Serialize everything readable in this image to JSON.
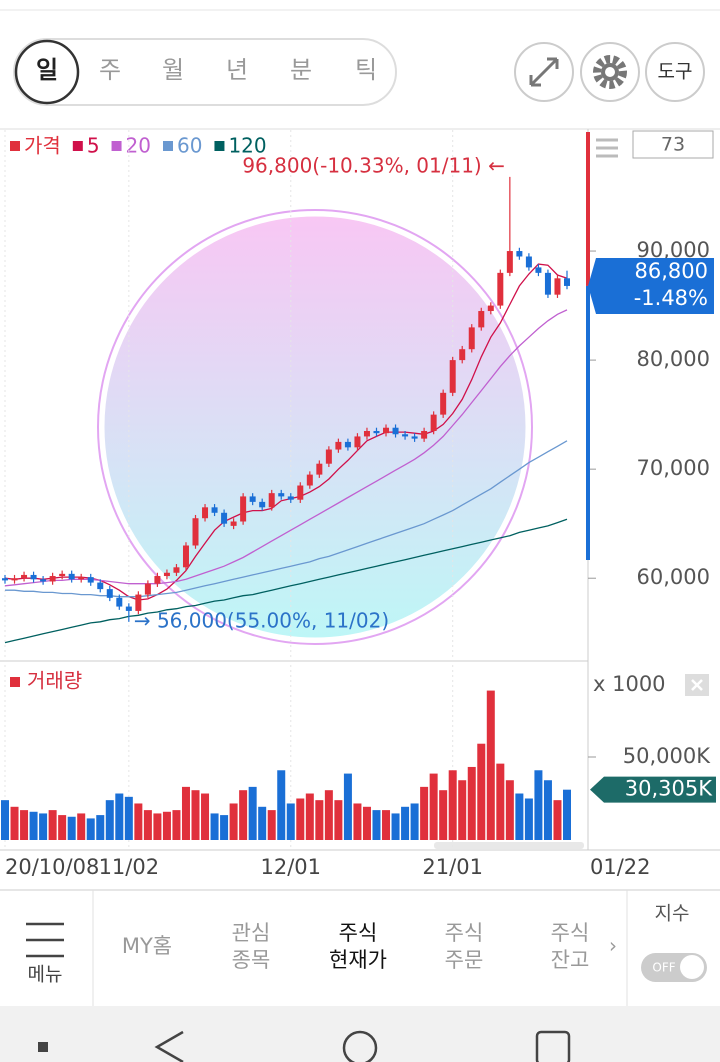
{
  "period_tabs": [
    "일",
    "주",
    "월",
    "년",
    "분",
    "틱"
  ],
  "tool_button": "도구",
  "chart_data": {
    "type": "candlestick",
    "legend": [
      {
        "name": "가격",
        "color": "#e0303c"
      },
      {
        "name": "5",
        "color": "#d0104a"
      },
      {
        "name": "20",
        "color": "#c060d0"
      },
      {
        "name": "60",
        "color": "#6a98d0"
      },
      {
        "name": "120",
        "color": "#006060"
      }
    ],
    "badge": "73",
    "up_color": "#e0303c",
    "down_color": "#1a6fd6",
    "categories": [
      "20/10/08",
      null,
      null,
      null,
      null,
      null,
      null,
      null,
      null,
      null,
      null,
      null,
      null,
      "11/02",
      null,
      null,
      null,
      null,
      null,
      null,
      null,
      null,
      null,
      null,
      null,
      null,
      null,
      null,
      null,
      null,
      "12/01",
      null,
      null,
      null,
      null,
      null,
      null,
      null,
      null,
      null,
      null,
      null,
      null,
      null,
      null,
      null,
      null,
      "21/01",
      null,
      null,
      null,
      null,
      null,
      null,
      null,
      null,
      null,
      null,
      null,
      "01/22"
    ],
    "open": [
      60000,
      59800,
      60000,
      60300,
      59900,
      59700,
      60200,
      60400,
      59900,
      60100,
      59600,
      59000,
      58200,
      57400,
      57000,
      58500,
      59500,
      60200,
      60500,
      61000,
      63000,
      65500,
      66500,
      66000,
      64800,
      65200,
      67500,
      67000,
      66500,
      67800,
      67500,
      67200,
      68500,
      69500,
      70500,
      71800,
      72500,
      72000,
      73000,
      73500,
      73300,
      73800,
      73200,
      73000,
      72800,
      73500,
      75000,
      77000,
      80000,
      81000,
      83000,
      84500,
      85000,
      88000,
      90000,
      89500,
      88500,
      88000,
      86000,
      87500
    ],
    "close": [
      59800,
      60000,
      60300,
      59900,
      59700,
      60200,
      60400,
      59900,
      60100,
      59600,
      59000,
      58200,
      57400,
      57000,
      58500,
      59500,
      60200,
      60500,
      61000,
      63000,
      65500,
      66500,
      66000,
      65000,
      65200,
      67500,
      67000,
      66500,
      67800,
      67500,
      67200,
      68500,
      69500,
      70500,
      71800,
      72500,
      72000,
      73000,
      73500,
      73300,
      73800,
      73200,
      73000,
      72800,
      73500,
      75000,
      77000,
      80000,
      81000,
      83000,
      84500,
      85000,
      88000,
      90000,
      89500,
      88500,
      88000,
      86000,
      87500,
      86800
    ],
    "high": [
      60300,
      60300,
      60600,
      60600,
      60200,
      60500,
      60700,
      60700,
      60400,
      60400,
      59900,
      59300,
      58500,
      57700,
      58800,
      59800,
      60500,
      60800,
      61300,
      63300,
      65800,
      66800,
      66800,
      66300,
      65500,
      67800,
      67800,
      67300,
      68100,
      68100,
      67800,
      68800,
      69800,
      70800,
      72100,
      72800,
      72800,
      73300,
      73800,
      73800,
      74100,
      74100,
      73500,
      73300,
      73800,
      75300,
      77300,
      80300,
      81300,
      83300,
      84800,
      85300,
      88300,
      96800,
      90300,
      89800,
      88800,
      88300,
      87800,
      88200
    ],
    "low": [
      59500,
      59500,
      59700,
      59600,
      59400,
      59400,
      59900,
      59600,
      59600,
      59300,
      58700,
      57900,
      57100,
      56000,
      56700,
      58200,
      59200,
      59900,
      60200,
      60700,
      62700,
      65200,
      65700,
      64700,
      64500,
      64900,
      66700,
      66200,
      66200,
      67200,
      66900,
      66900,
      68200,
      69200,
      70200,
      71500,
      71700,
      71700,
      72700,
      73000,
      73000,
      72900,
      72700,
      72500,
      72500,
      73200,
      74700,
      76700,
      79700,
      80700,
      82700,
      84200,
      84700,
      87700,
      89200,
      88200,
      87700,
      85700,
      85700,
      86500
    ],
    "ma": [
      {
        "name": "5",
        "color": "#d0104a",
        "values": [
          60000,
          59900,
          60000,
          60000,
          59900,
          60000,
          60100,
          60100,
          60100,
          60000,
          59800,
          59400,
          58900,
          58300,
          58000,
          58100,
          58500,
          59000,
          59800,
          60700,
          62000,
          63200,
          64400,
          65200,
          65600,
          66000,
          66200,
          66200,
          66400,
          67100,
          67300,
          67500,
          67900,
          68400,
          69100,
          70000,
          70800,
          71700,
          72600,
          73000,
          73400,
          73400,
          73400,
          73300,
          73200,
          73500,
          74100,
          75100,
          76400,
          78200,
          80300,
          82100,
          83400,
          85100,
          86800,
          87900,
          88800,
          88700,
          87800,
          87500
        ]
      },
      {
        "name": "20",
        "color": "#c060d0",
        "values": [
          59300,
          59400,
          59500,
          59600,
          59700,
          59800,
          59800,
          59900,
          59900,
          59900,
          59800,
          59700,
          59600,
          59500,
          59500,
          59500,
          59500,
          59600,
          59700,
          59900,
          60200,
          60500,
          60800,
          61100,
          61500,
          61900,
          62400,
          62900,
          63400,
          63900,
          64400,
          64900,
          65400,
          65900,
          66400,
          66900,
          67400,
          67900,
          68400,
          68900,
          69400,
          69900,
          70400,
          70900,
          71500,
          72200,
          73000,
          74000,
          75000,
          76100,
          77200,
          78300,
          79400,
          80400,
          81300,
          82100,
          82900,
          83600,
          84200,
          84600
        ]
      },
      {
        "name": "60",
        "color": "#6a98d0",
        "values": [
          58900,
          58900,
          58800,
          58800,
          58700,
          58700,
          58600,
          58600,
          58500,
          58500,
          58400,
          58400,
          58300,
          58300,
          58300,
          58400,
          58500,
          58600,
          58700,
          58900,
          59100,
          59300,
          59500,
          59700,
          59900,
          60100,
          60300,
          60500,
          60700,
          60900,
          61100,
          61300,
          61500,
          61800,
          62000,
          62300,
          62600,
          62900,
          63200,
          63500,
          63800,
          64100,
          64400,
          64700,
          65000,
          65400,
          65800,
          66200,
          66700,
          67200,
          67700,
          68200,
          68800,
          69400,
          70000,
          70600,
          71100,
          71600,
          72100,
          72600
        ]
      },
      {
        "name": "120",
        "color": "#006060",
        "values": [
          54100,
          54300,
          54500,
          54700,
          54900,
          55100,
          55300,
          55500,
          55700,
          55900,
          56000,
          56200,
          56300,
          56500,
          56600,
          56800,
          56900,
          57100,
          57200,
          57400,
          57500,
          57700,
          57900,
          58000,
          58200,
          58400,
          58500,
          58700,
          58900,
          59100,
          59300,
          59500,
          59700,
          59900,
          60100,
          60300,
          60500,
          60700,
          60900,
          61100,
          61300,
          61500,
          61700,
          61900,
          62100,
          62300,
          62500,
          62700,
          62900,
          63100,
          63300,
          63500,
          63700,
          63900,
          64200,
          64400,
          64600,
          64800,
          65100,
          65400
        ]
      }
    ],
    "ylim": [
      52500,
      101100
    ],
    "yticks": [
      {
        "value": 90000,
        "label": "90,000"
      },
      {
        "value": 80000,
        "label": "80,000"
      },
      {
        "value": 70000,
        "label": "70,000"
      },
      {
        "value": 60000,
        "label": "60,000"
      }
    ],
    "current": {
      "value": 86800,
      "label": "86,800",
      "change": "-1.48%"
    },
    "annotations": [
      {
        "text": "96,800(-10.33%, 01/11) ←",
        "value": 96800,
        "index": 53
      },
      {
        "text": "→ 56,000(55.00%, 11/02)",
        "value": 56000,
        "index": 13
      }
    ],
    "volume": {
      "title": "거래량",
      "unit": "x 1000",
      "values": [
        24000,
        20000,
        18000,
        17000,
        16000,
        18000,
        15000,
        14000,
        16000,
        13000,
        15000,
        24000,
        28000,
        26000,
        22000,
        18000,
        16000,
        17000,
        18000,
        32000,
        30000,
        28000,
        16000,
        15000,
        22000,
        30000,
        32000,
        20000,
        18000,
        42000,
        22000,
        25000,
        28000,
        24000,
        30000,
        24000,
        40000,
        22000,
        20000,
        18000,
        18000,
        16000,
        20000,
        22000,
        32000,
        40000,
        30000,
        42000,
        36000,
        44000,
        58000,
        90000,
        46000,
        36000,
        28000,
        25000,
        42000,
        36000,
        24000,
        30305
      ],
      "current_label": "30,305K",
      "ylim": [
        0,
        103600
      ],
      "yticks": [
        {
          "value": 50000,
          "label": "50,000K"
        }
      ]
    }
  },
  "bottom_nav": {
    "menu": "메뉴",
    "items": [
      [
        "MY홈"
      ],
      [
        "관심",
        "종목"
      ],
      [
        "주식",
        "현재가"
      ],
      [
        "주식",
        "주문"
      ],
      [
        "주식",
        "잔고"
      ]
    ],
    "index_label": "지수",
    "toggle": "OFF"
  }
}
